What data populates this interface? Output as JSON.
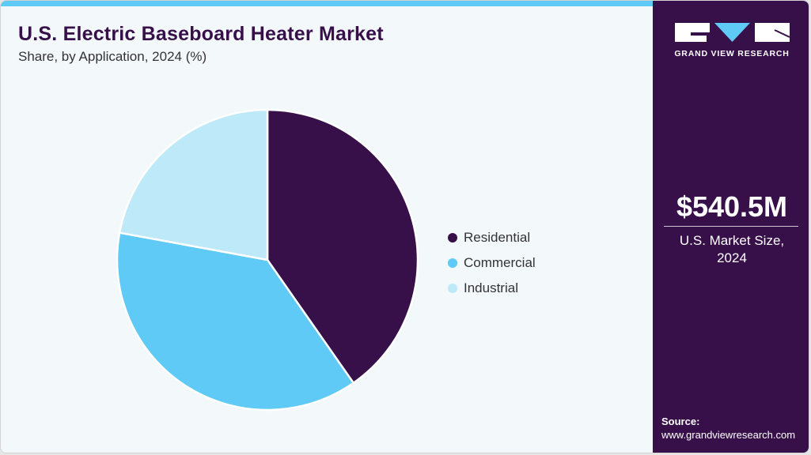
{
  "header": {
    "title": "U.S. Electric Baseboard Heater Market",
    "subtitle": "Share, by Application, 2024 (%)"
  },
  "colors": {
    "brand_dark": "#37104a",
    "accent": "#5ecaf5",
    "background": "#f3f8fb",
    "residential": "#37104a",
    "commercial": "#5ecaf5",
    "industrial": "#bde9f9"
  },
  "legend": {
    "items": [
      {
        "label": "Residential",
        "color": "#37104a"
      },
      {
        "label": "Commercial",
        "color": "#5ecaf5"
      },
      {
        "label": "Industrial",
        "color": "#bde9f9"
      }
    ]
  },
  "sidebar": {
    "logo_text": "GRAND VIEW RESEARCH",
    "market_value": "$540.5M",
    "market_label_line1": "U.S. Market Size,",
    "market_label_line2": "2024",
    "source_heading": "Source:",
    "source_url": "www.grandviewresearch.com"
  },
  "chart_data": {
    "type": "pie",
    "title": "U.S. Electric Baseboard Heater Market",
    "subtitle": "Share, by Application, 2024 (%)",
    "categories": [
      "Residential",
      "Commercial",
      "Industrial"
    ],
    "values": [
      40.3,
      37.6,
      22.1
    ],
    "colors": [
      "#37104a",
      "#5ecaf5",
      "#bde9f9"
    ],
    "start_angle": "12 o'clock, clockwise",
    "legend_position": "right",
    "data_labels": false
  }
}
